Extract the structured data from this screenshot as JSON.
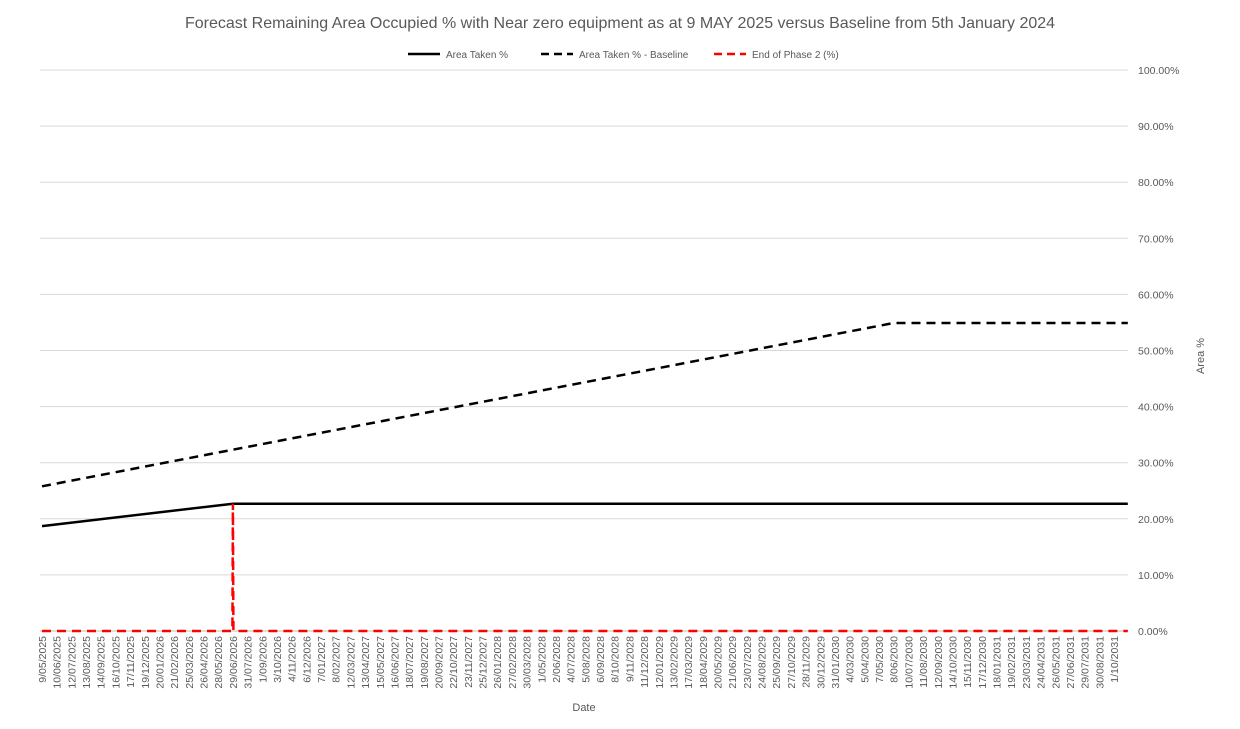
{
  "chart_data": {
    "type": "line",
    "title": "Forecast Remaining Area Occupied % with Near zero equipment as at 9 MAY 2025 versus Baseline from 5th January 2024",
    "xlabel": "Date",
    "ylabel": "Area %",
    "ylim": [
      0,
      100
    ],
    "y_axis_position": "right",
    "yticks": [
      "0.00%",
      "10.00%",
      "20.00%",
      "30.00%",
      "40.00%",
      "50.00%",
      "60.00%",
      "70.00%",
      "80.00%",
      "90.00%",
      "100.00%"
    ],
    "grid": true,
    "legend_position": "top",
    "xticks": [
      "9/05/2025",
      "10/06/2025",
      "12/07/2025",
      "13/08/2025",
      "14/09/2025",
      "16/10/2025",
      "17/11/2025",
      "19/12/2025",
      "20/01/2026",
      "21/02/2026",
      "25/03/2026",
      "26/04/2026",
      "28/05/2026",
      "29/06/2026",
      "31/07/2026",
      "1/09/2026",
      "3/10/2026",
      "4/11/2026",
      "6/12/2026",
      "7/01/2027",
      "8/02/2027",
      "12/03/2027",
      "13/04/2027",
      "15/05/2027",
      "16/06/2027",
      "18/07/2027",
      "19/08/2027",
      "20/09/2027",
      "22/10/2027",
      "23/11/2027",
      "25/12/2027",
      "26/01/2028",
      "27/02/2028",
      "30/03/2028",
      "1/05/2028",
      "2/06/2028",
      "4/07/2028",
      "5/08/2028",
      "6/09/2028",
      "8/10/2028",
      "9/11/2028",
      "11/12/2028",
      "12/01/2029",
      "13/02/2029",
      "17/03/2029",
      "18/04/2029",
      "20/05/2029",
      "21/06/2029",
      "23/07/2029",
      "24/08/2029",
      "25/09/2029",
      "27/10/2029",
      "28/11/2029",
      "30/12/2029",
      "31/01/2030",
      "4/03/2030",
      "5/04/2030",
      "7/05/2030",
      "8/06/2030",
      "10/07/2030",
      "11/08/2030",
      "12/09/2030",
      "14/10/2030",
      "15/11/2030",
      "17/12/2030",
      "18/01/2031",
      "19/02/2031",
      "23/03/2031",
      "24/04/2031",
      "26/05/2031",
      "27/06/2031",
      "29/07/2031",
      "30/08/2031",
      "1/10/2031"
    ],
    "series": [
      {
        "name": "Area Taken %",
        "color": "#000000",
        "dash": "solid",
        "points": [
          [
            "9/05/2025",
            18.7
          ],
          [
            "29/06/2026",
            22.7
          ],
          [
            "31/10/2031",
            22.7
          ]
        ]
      },
      {
        "name": "Area Taken % - Baseline",
        "color": "#000000",
        "dash": "dashed",
        "points": [
          [
            "9/05/2025",
            25.8
          ],
          [
            "8/06/2030",
            54.9
          ],
          [
            "31/10/2031",
            54.9
          ]
        ]
      },
      {
        "name": "End of Phase 2 (%)",
        "color": "#ff0000",
        "dash": "dashed",
        "points": [
          [
            "9/05/2025",
            0
          ],
          [
            "28/06/2026",
            0
          ],
          [
            "29/06/2026",
            22.7
          ],
          [
            "30/06/2026",
            0
          ],
          [
            "31/10/2031",
            0
          ]
        ]
      }
    ]
  }
}
